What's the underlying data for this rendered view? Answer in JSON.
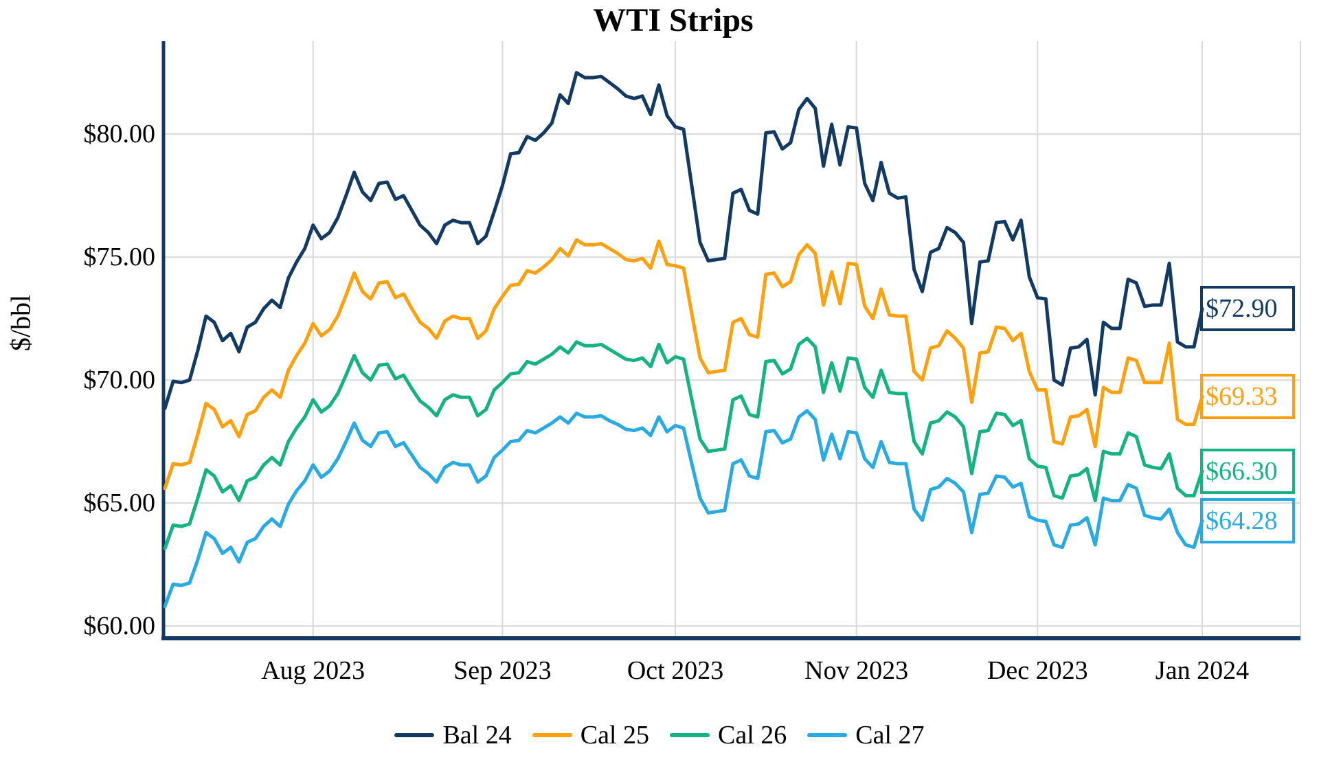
{
  "chart_data": {
    "type": "line",
    "title": "WTI Strips",
    "ylabel": "$/bbl",
    "background": "#FFFFFF",
    "grid_color": "#D9D9D9",
    "axis_color": "#133A63",
    "legend_position": "bottom",
    "grid": "on",
    "y_axis": {
      "min": 59.5,
      "max": 83.78,
      "ticks": [
        {
          "value": 80,
          "label": "$80.00"
        },
        {
          "value": 75,
          "label": "$75.00"
        },
        {
          "value": 70,
          "label": "$70.00"
        },
        {
          "value": 65,
          "label": "$65.00"
        },
        {
          "value": 60,
          "label": "$60.00"
        }
      ]
    },
    "x_axis": {
      "ticks": [
        {
          "index": 18,
          "label": "Aug 2023"
        },
        {
          "index": 41,
          "label": "Sep 2023"
        },
        {
          "index": 62,
          "label": "Oct 2023"
        },
        {
          "index": 84,
          "label": "Nov 2023"
        },
        {
          "index": 106,
          "label": "Dec 2023"
        },
        {
          "index": 126,
          "label": "Jan 2024"
        }
      ]
    },
    "dates": [
      "2023-07-06",
      "2023-07-07",
      "2023-07-10",
      "2023-07-11",
      "2023-07-12",
      "2023-07-13",
      "2023-07-14",
      "2023-07-17",
      "2023-07-18",
      "2023-07-19",
      "2023-07-20",
      "2023-07-21",
      "2023-07-24",
      "2023-07-25",
      "2023-07-26",
      "2023-07-27",
      "2023-07-28",
      "2023-07-31",
      "2023-08-01",
      "2023-08-02",
      "2023-08-03",
      "2023-08-04",
      "2023-08-07",
      "2023-08-08",
      "2023-08-09",
      "2023-08-10",
      "2023-08-11",
      "2023-08-14",
      "2023-08-15",
      "2023-08-16",
      "2023-08-17",
      "2023-08-18",
      "2023-08-21",
      "2023-08-22",
      "2023-08-23",
      "2023-08-24",
      "2023-08-25",
      "2023-08-28",
      "2023-08-29",
      "2023-08-30",
      "2023-08-31",
      "2023-09-01",
      "2023-09-04",
      "2023-09-05",
      "2023-09-06",
      "2023-09-07",
      "2023-09-08",
      "2023-09-11",
      "2023-09-12",
      "2023-09-13",
      "2023-09-14",
      "2023-09-15",
      "2023-09-18",
      "2023-09-19",
      "2023-09-20",
      "2023-09-21",
      "2023-09-22",
      "2023-09-25",
      "2023-09-26",
      "2023-09-27",
      "2023-09-28",
      "2023-09-29",
      "2023-10-02",
      "2023-10-03",
      "2023-10-04",
      "2023-10-05",
      "2023-10-06",
      "2023-10-09",
      "2023-10-10",
      "2023-10-11",
      "2023-10-12",
      "2023-10-13",
      "2023-10-16",
      "2023-10-17",
      "2023-10-18",
      "2023-10-19",
      "2023-10-20",
      "2023-10-23",
      "2023-10-24",
      "2023-10-25",
      "2023-10-26",
      "2023-10-27",
      "2023-10-30",
      "2023-10-31",
      "2023-11-01",
      "2023-11-02",
      "2023-11-03",
      "2023-11-06",
      "2023-11-07",
      "2023-11-08",
      "2023-11-09",
      "2023-11-10",
      "2023-11-13",
      "2023-11-14",
      "2023-11-15",
      "2023-11-16",
      "2023-11-17",
      "2023-11-20",
      "2023-11-21",
      "2023-11-22",
      "2023-11-23",
      "2023-11-24",
      "2023-11-27",
      "2023-11-28",
      "2023-11-29",
      "2023-11-30",
      "2023-12-01",
      "2023-12-04",
      "2023-12-05",
      "2023-12-06",
      "2023-12-07",
      "2023-12-08",
      "2023-12-11",
      "2023-12-12",
      "2023-12-13",
      "2023-12-14",
      "2023-12-15",
      "2023-12-18",
      "2023-12-19",
      "2023-12-20",
      "2023-12-21",
      "2023-12-22",
      "2023-12-26",
      "2023-12-27",
      "2023-12-28",
      "2023-12-29",
      "2024-01-02"
    ],
    "series": [
      {
        "name": "Bal 24",
        "color": "#133A63",
        "end_label": "$72.90",
        "end_value": 72.9,
        "values": [
          68.85,
          69.95,
          69.9,
          70.0,
          71.2,
          72.6,
          72.35,
          71.6,
          71.9,
          71.15,
          72.15,
          72.35,
          72.9,
          73.25,
          72.95,
          74.15,
          74.8,
          75.35,
          76.3,
          75.75,
          76.0,
          76.6,
          77.5,
          78.45,
          77.65,
          77.3,
          78.0,
          78.05,
          77.35,
          77.5,
          76.9,
          76.3,
          76.0,
          75.55,
          76.3,
          76.5,
          76.4,
          76.4,
          75.55,
          75.85,
          76.85,
          77.9,
          79.2,
          79.25,
          79.9,
          79.75,
          80.05,
          80.45,
          81.6,
          81.25,
          82.5,
          82.3,
          82.3,
          82.35,
          82.1,
          81.85,
          81.55,
          81.45,
          81.55,
          80.8,
          82.0,
          80.75,
          80.3,
          80.2,
          77.9,
          75.6,
          74.85,
          74.9,
          74.95,
          77.6,
          77.75,
          76.9,
          76.75,
          80.05,
          80.1,
          79.4,
          79.65,
          81.0,
          81.45,
          81.05,
          78.7,
          80.4,
          78.75,
          80.3,
          80.25,
          78.0,
          77.3,
          78.85,
          77.6,
          77.4,
          77.45,
          74.5,
          73.6,
          75.2,
          75.35,
          76.2,
          76.0,
          75.6,
          72.3,
          74.8,
          74.85,
          76.4,
          76.45,
          75.7,
          76.5,
          74.2,
          73.35,
          73.3,
          70.0,
          69.8,
          71.3,
          71.35,
          71.65,
          69.4,
          72.35,
          72.1,
          72.1,
          74.1,
          73.95,
          73.0,
          73.05,
          73.05,
          74.75,
          71.55,
          71.35,
          71.35,
          72.9
        ]
      },
      {
        "name": "Cal 25",
        "color": "#FFA00F",
        "end_label": "$69.33",
        "end_value": 69.33,
        "values": [
          65.6,
          66.6,
          66.55,
          66.65,
          67.8,
          69.05,
          68.8,
          68.1,
          68.35,
          67.7,
          68.6,
          68.75,
          69.3,
          69.6,
          69.3,
          70.4,
          71.0,
          71.5,
          72.3,
          71.8,
          72.05,
          72.6,
          73.45,
          74.35,
          73.6,
          73.3,
          73.95,
          74.0,
          73.35,
          73.5,
          72.9,
          72.35,
          72.1,
          71.7,
          72.4,
          72.6,
          72.5,
          72.5,
          71.7,
          72.0,
          72.9,
          73.4,
          73.85,
          73.9,
          74.45,
          74.35,
          74.6,
          74.9,
          75.35,
          75.05,
          75.7,
          75.5,
          75.5,
          75.55,
          75.35,
          75.15,
          74.9,
          74.85,
          74.95,
          74.55,
          75.65,
          74.7,
          74.65,
          74.55,
          72.7,
          70.9,
          70.3,
          70.35,
          70.4,
          72.35,
          72.5,
          71.85,
          71.75,
          74.3,
          74.35,
          73.8,
          74.0,
          75.1,
          75.5,
          75.15,
          73.05,
          74.4,
          73.1,
          74.75,
          74.7,
          73.0,
          72.5,
          73.7,
          72.65,
          72.6,
          72.6,
          70.35,
          70.0,
          71.3,
          71.4,
          72.0,
          71.7,
          71.3,
          69.1,
          71.1,
          71.15,
          72.15,
          72.1,
          71.6,
          71.9,
          70.35,
          69.6,
          69.6,
          67.5,
          67.4,
          68.5,
          68.55,
          68.8,
          67.3,
          69.7,
          69.5,
          69.5,
          70.9,
          70.8,
          69.9,
          69.9,
          69.9,
          71.5,
          68.4,
          68.2,
          68.2,
          69.33
        ]
      },
      {
        "name": "Cal 26",
        "color": "#16B382",
        "end_label": "$66.30",
        "end_value": 66.3,
        "values": [
          63.15,
          64.1,
          64.05,
          64.15,
          65.2,
          66.35,
          66.1,
          65.45,
          65.7,
          65.1,
          65.9,
          66.05,
          66.55,
          66.85,
          66.55,
          67.5,
          68.05,
          68.5,
          69.2,
          68.7,
          68.95,
          69.45,
          70.2,
          71.0,
          70.3,
          70.0,
          70.6,
          70.65,
          70.05,
          70.2,
          69.65,
          69.15,
          68.9,
          68.55,
          69.2,
          69.4,
          69.3,
          69.3,
          68.55,
          68.8,
          69.6,
          69.9,
          70.25,
          70.3,
          70.75,
          70.65,
          70.85,
          71.05,
          71.35,
          71.1,
          71.55,
          71.4,
          71.4,
          71.45,
          71.25,
          71.05,
          70.85,
          70.8,
          70.9,
          70.55,
          71.45,
          70.7,
          70.95,
          70.85,
          69.2,
          67.6,
          67.1,
          67.15,
          67.2,
          69.2,
          69.35,
          68.6,
          68.5,
          70.75,
          70.8,
          70.25,
          70.45,
          71.45,
          71.7,
          71.35,
          69.5,
          70.7,
          69.55,
          70.9,
          70.85,
          69.7,
          69.3,
          70.4,
          69.5,
          69.45,
          69.45,
          67.5,
          67.0,
          68.25,
          68.35,
          68.7,
          68.5,
          68.1,
          66.2,
          67.9,
          67.95,
          68.65,
          68.6,
          68.15,
          68.35,
          66.8,
          66.5,
          66.45,
          65.3,
          65.2,
          66.1,
          66.15,
          66.4,
          65.1,
          67.1,
          67.0,
          67.0,
          67.85,
          67.7,
          66.55,
          66.45,
          66.4,
          67.0,
          65.6,
          65.3,
          65.3,
          66.3
        ]
      },
      {
        "name": "Cal 27",
        "color": "#29ABE2",
        "end_label": "$64.28",
        "end_value": 64.28,
        "values": [
          60.8,
          61.7,
          61.65,
          61.75,
          62.7,
          63.8,
          63.55,
          62.95,
          63.2,
          62.6,
          63.4,
          63.55,
          64.05,
          64.35,
          64.05,
          64.95,
          65.5,
          65.9,
          66.55,
          66.05,
          66.3,
          66.8,
          67.5,
          68.25,
          67.55,
          67.3,
          67.85,
          67.9,
          67.3,
          67.45,
          66.95,
          66.45,
          66.2,
          65.85,
          66.45,
          66.65,
          66.55,
          66.55,
          65.85,
          66.1,
          66.85,
          67.15,
          67.5,
          67.55,
          67.95,
          67.85,
          68.05,
          68.25,
          68.5,
          68.25,
          68.65,
          68.5,
          68.5,
          68.55,
          68.35,
          68.2,
          68.0,
          67.95,
          68.05,
          67.75,
          68.5,
          67.9,
          68.15,
          68.05,
          66.6,
          65.2,
          64.6,
          64.65,
          64.7,
          66.6,
          66.75,
          66.1,
          66.0,
          67.9,
          67.95,
          67.45,
          67.6,
          68.5,
          68.75,
          68.4,
          66.75,
          67.8,
          66.8,
          67.9,
          67.85,
          66.8,
          66.45,
          67.5,
          66.65,
          66.6,
          66.6,
          64.75,
          64.3,
          65.55,
          65.65,
          66.0,
          65.8,
          65.45,
          63.8,
          65.35,
          65.4,
          66.1,
          66.05,
          65.65,
          65.8,
          64.45,
          64.3,
          64.25,
          63.3,
          63.2,
          64.1,
          64.15,
          64.4,
          63.3,
          65.2,
          65.1,
          65.1,
          65.75,
          65.6,
          64.5,
          64.4,
          64.35,
          64.75,
          63.8,
          63.3,
          63.2,
          64.28
        ]
      }
    ]
  }
}
